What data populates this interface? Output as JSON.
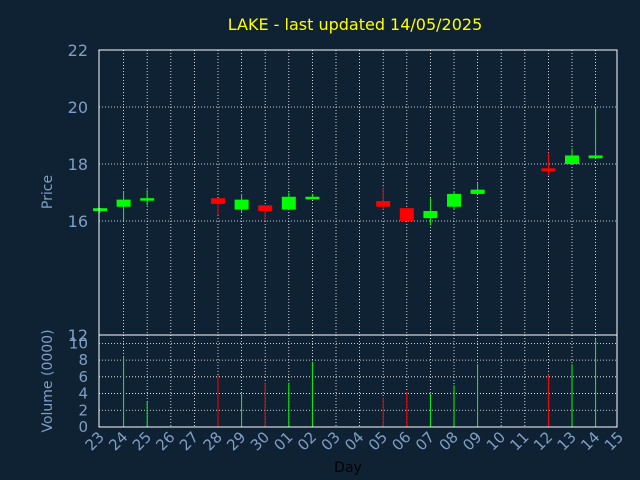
{
  "chart_data": {
    "type": "candlestick",
    "title": "LAKE - last updated 14/05/2025",
    "xlabel": "Day",
    "price_panel": {
      "ylabel": "Price",
      "ylim": [
        12,
        22
      ],
      "yticks": [
        12,
        16,
        18,
        20,
        22
      ],
      "grid": true
    },
    "volume_panel": {
      "ylabel": "Volume (0000)",
      "ylim": [
        0,
        11
      ],
      "yticks": [
        0,
        2,
        4,
        6,
        8,
        10
      ],
      "grid": true
    },
    "x_ticks": [
      "23",
      "24",
      "25",
      "26",
      "27",
      "28",
      "29",
      "30",
      "01",
      "02",
      "03",
      "04",
      "05",
      "06",
      "07",
      "08",
      "09",
      "10",
      "11",
      "12",
      "13",
      "14",
      "15"
    ],
    "candles": [
      {
        "day": "23",
        "open": 16.35,
        "high": 16.45,
        "low": 16.3,
        "close": 16.45,
        "volume": 0
      },
      {
        "day": "24",
        "open": 16.5,
        "high": 17.05,
        "low": 16.0,
        "close": 16.75,
        "volume": 8.5
      },
      {
        "day": "25",
        "open": 16.8,
        "high": 17.1,
        "low": 16.55,
        "close": 16.8,
        "volume": 3.0
      },
      {
        "day": "28",
        "open": 16.8,
        "high": 16.8,
        "low": 16.2,
        "close": 16.6,
        "volume": 6.2
      },
      {
        "day": "29",
        "open": 16.4,
        "high": 16.95,
        "low": 16.3,
        "close": 16.75,
        "volume": 4.0
      },
      {
        "day": "30",
        "open": 16.55,
        "high": 16.55,
        "low": 16.0,
        "close": 16.35,
        "volume": 5.3
      },
      {
        "day": "01",
        "open": 16.4,
        "high": 17.0,
        "low": 16.4,
        "close": 16.85,
        "volume": 5.3
      },
      {
        "day": "02",
        "open": 16.85,
        "high": 16.95,
        "low": 16.75,
        "close": 16.85,
        "volume": 7.8
      },
      {
        "day": "05",
        "open": 16.7,
        "high": 17.2,
        "low": 16.4,
        "close": 16.5,
        "volume": 3.5
      },
      {
        "day": "06",
        "open": 16.45,
        "high": 16.45,
        "low": 16.0,
        "close": 16.0,
        "volume": 4.2
      },
      {
        "day": "07",
        "open": 16.1,
        "high": 16.8,
        "low": 15.85,
        "close": 16.35,
        "volume": 4.0
      },
      {
        "day": "08",
        "open": 16.5,
        "high": 17.05,
        "low": 16.4,
        "close": 16.95,
        "volume": 5.0
      },
      {
        "day": "09",
        "open": 16.95,
        "high": 17.35,
        "low": 16.95,
        "close": 17.1,
        "volume": 7.5
      },
      {
        "day": "12",
        "open": 17.85,
        "high": 18.4,
        "low": 17.6,
        "close": 17.75,
        "volume": 6.3
      },
      {
        "day": "13",
        "open": 18.0,
        "high": 18.55,
        "low": 18.0,
        "close": 18.3,
        "volume": 7.5
      },
      {
        "day": "14",
        "open": 18.2,
        "high": 20.0,
        "low": 18.2,
        "close": 18.3,
        "volume": 10.5
      }
    ],
    "colors": {
      "background": "#0f2233",
      "grid": "#ffffff",
      "axis_text": "#7f9fc4",
      "title": "#ffff00",
      "up": "#00ff00",
      "down": "#ff0000",
      "frame": "#ffffff"
    }
  }
}
